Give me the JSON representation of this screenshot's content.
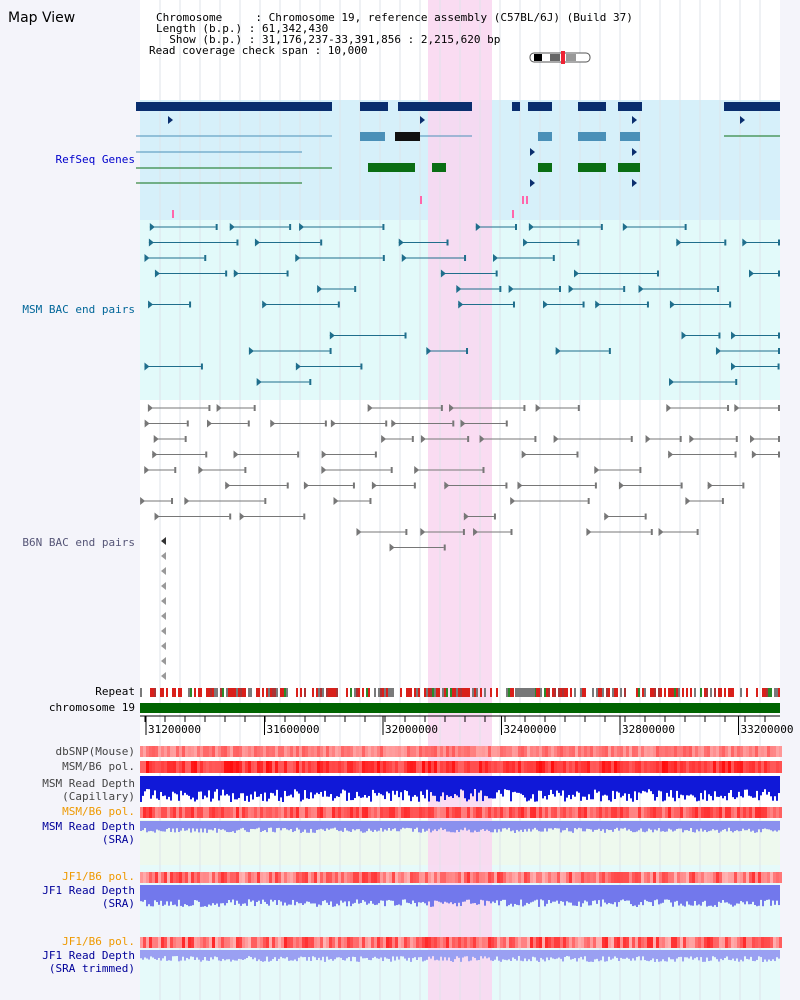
{
  "title": "Map View",
  "info": {
    "chromosome": "Chromosome     : Chromosome 19, reference assembly (C57BL/6J) (Build 37)",
    "length": "Length (b.p.) : 61,342,430",
    "show": "  Show (b.p.) : 31,176,237-33,391,856 : 2,215,620 bp",
    "coverage": "Read coverage check span : 10,000"
  },
  "tracks": {
    "refseq": "RefSeq Genes",
    "msm_bac": "MSM BAC end pairs",
    "b6n_bac": "B6N BAC end pairs",
    "repeat": "Repeat",
    "chromosome": "chromosome 19",
    "dbsnp": "dbSNP(Mouse)",
    "msm_b6_pol_1": "MSM/B6 pol.",
    "msm_depth_cap_1": "MSM Read Depth",
    "msm_depth_cap_2": "(Capillary)",
    "msm_b6_pol_2": "MSM/B6 pol.",
    "msm_depth_sra_1": "MSM Read Depth",
    "msm_depth_sra_2": "(SRA)",
    "jf1_b6_pol_1": "JF1/B6 pol.",
    "jf1_depth_sra_1": "JF1 Read Depth",
    "jf1_depth_sra_2": "(SRA)",
    "jf1_b6_pol_2": "JF1/B6 pol.",
    "jf1_depth_trim_1": "JF1 Read Depth",
    "jf1_depth_trim_2": "(SRA trimmed)"
  },
  "axis": {
    "ticks": [
      "31200000",
      "31600000",
      "32000000",
      "32400000",
      "32800000",
      "33200000"
    ]
  },
  "colors": {
    "highlight": "#f9d6f0",
    "refseq_bg": "#d6f0fa",
    "msm_bg": "#e2fafa",
    "gene_navy": "#0a2e6e",
    "gene_teal": "#4a90b8",
    "gene_green": "#0a6e14",
    "bac_teal": "#1f6e8c",
    "bac_gray": "#777777",
    "chrom_green": "#006400"
  }
}
